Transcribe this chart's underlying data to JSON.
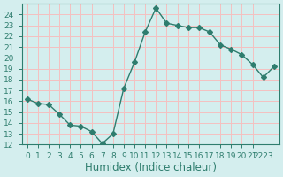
{
  "x": [
    0,
    1,
    2,
    3,
    4,
    5,
    6,
    7,
    8,
    9,
    10,
    11,
    12,
    13,
    14,
    15,
    16,
    17,
    18,
    19,
    20,
    21,
    22,
    23
  ],
  "y": [
    16.2,
    15.8,
    15.7,
    14.8,
    13.8,
    13.7,
    13.2,
    12.1,
    13.0,
    17.2,
    19.6,
    22.4,
    24.6,
    23.2,
    23.0,
    22.8,
    22.8,
    22.4,
    21.2,
    20.8,
    20.3,
    19.4,
    18.2,
    19.2
  ],
  "line_color": "#2e7d6e",
  "marker": "D",
  "marker_size": 3,
  "bg_color": "#d4eeee",
  "grid_color": "#f5c0c0",
  "xlabel": "Humidex (Indice chaleur)",
  "ylim": [
    12,
    25
  ],
  "xlim": [
    -0.5,
    23.5
  ],
  "yticks": [
    12,
    13,
    14,
    15,
    16,
    17,
    18,
    19,
    20,
    21,
    22,
    23,
    24
  ],
  "xtick_positions": [
    0,
    1,
    2,
    3,
    4,
    5,
    6,
    7,
    8,
    9,
    10,
    11,
    12,
    13,
    14,
    15,
    16,
    17,
    18,
    19,
    20,
    21,
    22
  ],
  "xtick_labels": [
    "0",
    "1",
    "2",
    "3",
    "4",
    "5",
    "6",
    "7",
    "8",
    "9",
    "10",
    "11",
    "12",
    "13",
    "14",
    "15",
    "16",
    "17",
    "18",
    "19",
    "20",
    "21",
    "2223"
  ],
  "tick_fontsize": 6.5,
  "xlabel_fontsize": 8.5
}
